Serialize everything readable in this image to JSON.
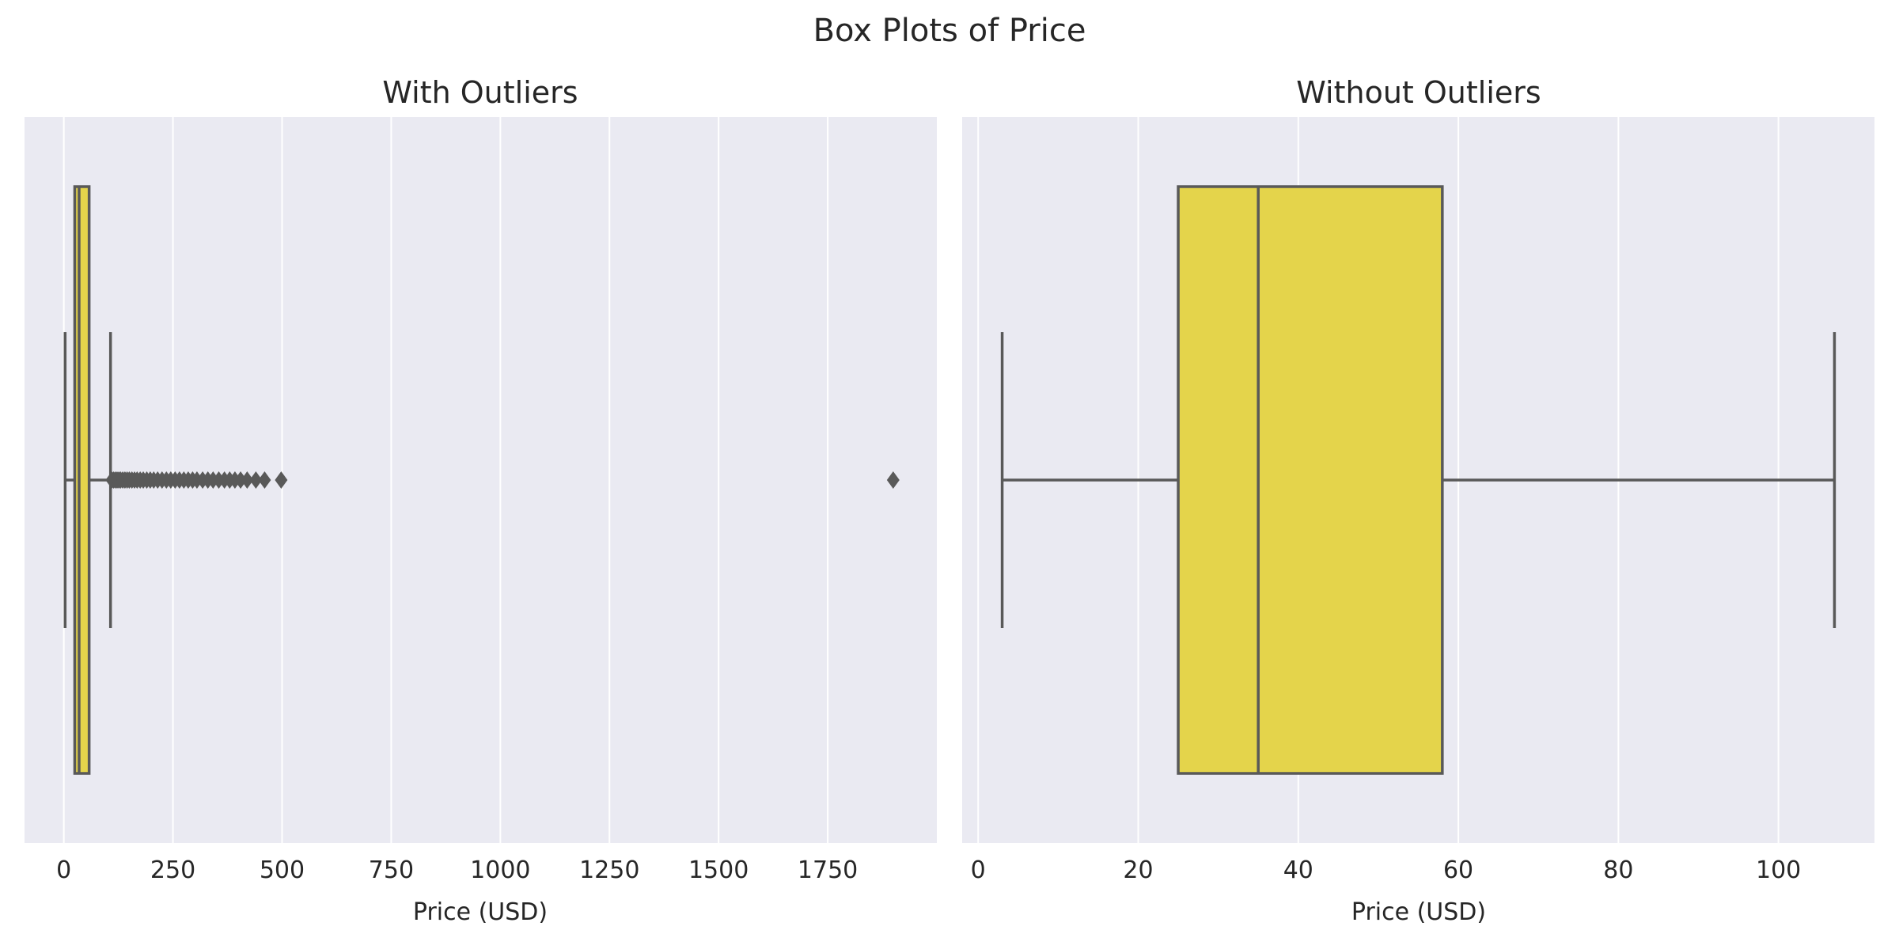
{
  "figure": {
    "title": "Box Plots of Price"
  },
  "style": {
    "axes_background": "#eaeaf2",
    "grid_color": "#ffffff",
    "box_fill": "#e4d44b",
    "line_color": "#595959"
  },
  "chart_data": [
    {
      "type": "box",
      "title": "With Outliers",
      "xlabel": "Price (USD)",
      "ylabel": "",
      "orientation": "horizontal",
      "grid": true,
      "xlim": [
        -90,
        2000
      ],
      "xticks": [
        0,
        250,
        500,
        750,
        1000,
        1250,
        1500,
        1750
      ],
      "box": {
        "whisker_low": 3,
        "q1": 25,
        "median": 35,
        "q3": 58,
        "whisker_high": 107
      },
      "outliers": [
        110,
        114,
        118,
        122,
        126,
        130,
        135,
        140,
        145,
        150,
        156,
        162,
        168,
        175,
        182,
        190,
        198,
        206,
        215,
        225,
        235,
        245,
        255,
        265,
        275,
        285,
        295,
        305,
        318,
        330,
        342,
        355,
        368,
        380,
        392,
        405,
        420,
        440,
        460,
        498,
        1900
      ]
    },
    {
      "type": "box",
      "title": "Without Outliers",
      "xlabel": "Price (USD)",
      "ylabel": "",
      "orientation": "horizontal",
      "grid": true,
      "xlim": [
        -2,
        112
      ],
      "xticks": [
        0,
        20,
        40,
        60,
        80,
        100
      ],
      "box": {
        "whisker_low": 3,
        "q1": 25,
        "median": 35,
        "q3": 58,
        "whisker_high": 107
      },
      "outliers": []
    }
  ]
}
